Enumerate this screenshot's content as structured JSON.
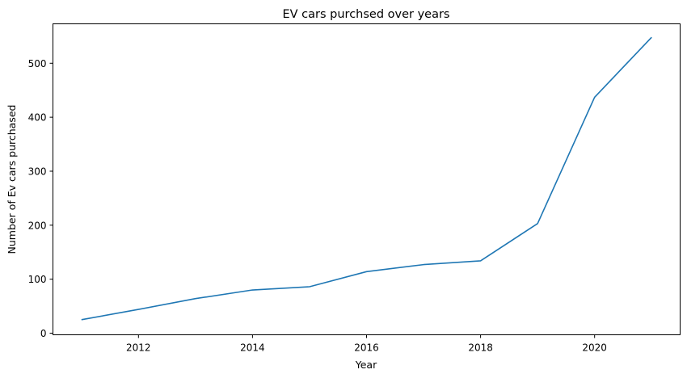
{
  "chart_data": {
    "type": "line",
    "title": "EV cars purchsed over years",
    "xlabel": "Year",
    "ylabel": "Number of Ev cars purchased",
    "xlim": [
      2010.5,
      2021.5
    ],
    "ylim": [
      -3,
      573
    ],
    "xticks": [
      2012,
      2014,
      2016,
      2018,
      2020
    ],
    "yticks": [
      0,
      100,
      200,
      300,
      400,
      500
    ],
    "grid": false,
    "series": [
      {
        "color": "#1f77b4",
        "x": [
          2011,
          2012,
          2013,
          2014,
          2015,
          2016,
          2017,
          2018,
          2019,
          2020,
          2021
        ],
        "y": [
          25,
          44,
          64,
          80,
          86,
          114,
          127,
          134,
          203,
          437,
          548
        ]
      }
    ]
  }
}
